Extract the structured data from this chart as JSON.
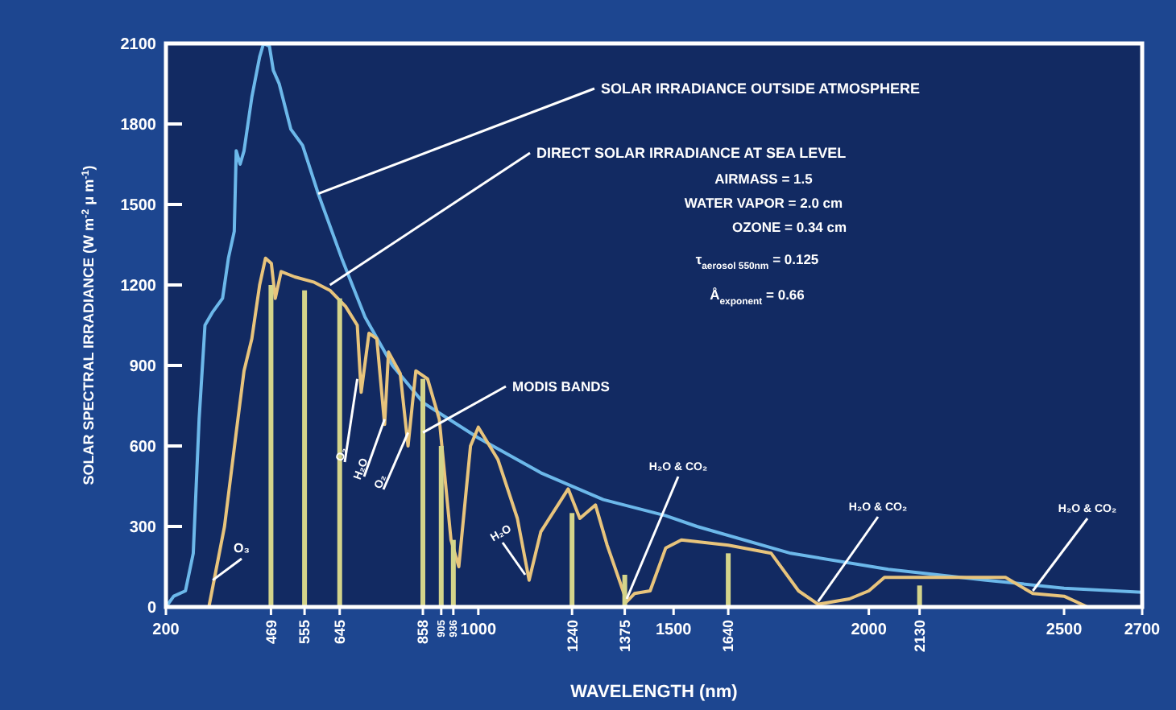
{
  "chart_data": {
    "type": "line",
    "xlabel": "WAVELENGTH (nm)",
    "ylabel": "SOLAR SPECTRAL IRRADIANCE (W m$^{-2}$ μ m$^{-1}$)",
    "xlim": [
      200,
      2700
    ],
    "ylim": [
      0,
      2100
    ],
    "xticks": [
      200,
      1000,
      1500,
      2000,
      2500,
      2700
    ],
    "yticks": [
      0,
      300,
      600,
      900,
      1200,
      1500,
      1800,
      2100
    ],
    "grid": false,
    "marker": "none",
    "line_style": "solid",
    "annotations": [
      {
        "text": "SOLAR IRRADIANCE OUTSIDE ATMOSPHERE",
        "x": 590,
        "y": 1540
      },
      {
        "text": "DIRECT SOLAR IRRADIANCE AT SEA LEVEL",
        "x": 620,
        "y": 1200
      },
      "AIRMASS = 1.5",
      "WATER VAPOR = 2.0 cm",
      "OZONE = 0.34 cm",
      "τ$_{aerosol 550nm}$ = 0.125",
      "Å$_{exponent}$ = 0.66",
      {
        "text": "MODIS BANDS",
        "x": 858,
        "y": 650
      },
      {
        "text": "O₃",
        "x": 320,
        "y": 100
      },
      {
        "text": "O₂",
        "x": 690,
        "y": 850
      },
      {
        "text": "H₂O",
        "x": 760,
        "y": 700
      },
      {
        "text": "O₂",
        "x": 820,
        "y": 650
      },
      {
        "text": "H₂O",
        "x": 1120,
        "y": 120
      },
      {
        "text": "H₂O & CO₂",
        "x": 1380,
        "y": 30
      },
      {
        "text": "H₂O & CO₂",
        "x": 1870,
        "y": 20
      },
      {
        "text": "H₂O & CO₂",
        "x": 2420,
        "y": 60
      },
      {
        "text": "469",
        "x": 469,
        "y": 0
      },
      {
        "text": "555",
        "x": 555,
        "y": 0
      },
      {
        "text": "645",
        "x": 645,
        "y": 0
      },
      {
        "text": "858",
        "x": 858,
        "y": 0
      },
      {
        "text": "905",
        "x": 905,
        "y": 0
      },
      {
        "text": "936",
        "x": 936,
        "y": 0
      },
      {
        "text": "1240",
        "x": 1240,
        "y": 0
      },
      {
        "text": "1375",
        "x": 1375,
        "y": 0
      },
      {
        "text": "1640",
        "x": 1640,
        "y": 0
      },
      {
        "text": "2130",
        "x": 2130,
        "y": 0
      }
    ],
    "series": [
      {
        "color": "#6cb8ea",
        "x": [
          200,
          220,
          250,
          270,
          285,
          300,
          320,
          345,
          360,
          375,
          380,
          390,
          400,
          410,
          420,
          440,
          450,
          465,
          475,
          490,
          520,
          550,
          590,
          650,
          710,
          780,
          860,
          1000,
          1160,
          1320,
          1480,
          1560,
          1800,
          2050,
          2300,
          2500,
          2700
        ],
        "values": [
          0,
          40,
          60,
          200,
          700,
          1050,
          1100,
          1150,
          1300,
          1400,
          1700,
          1650,
          1700,
          1800,
          1900,
          2050,
          2100,
          2090,
          2000,
          1950,
          1780,
          1720,
          1540,
          1300,
          1080,
          900,
          760,
          630,
          500,
          400,
          340,
          300,
          200,
          140,
          100,
          70,
          55
        ]
      },
      {
        "color": "#e8c47c",
        "x": [
          310,
          330,
          350,
          380,
          400,
          420,
          440,
          455,
          470,
          480,
          495,
          530,
          580,
          620,
          660,
          690,
          700,
          720,
          740,
          760,
          770,
          800,
          820,
          840,
          870,
          900,
          930,
          950,
          980,
          1000,
          1050,
          1100,
          1130,
          1160,
          1230,
          1260,
          1300,
          1330,
          1380,
          1400,
          1440,
          1480,
          1520,
          1640,
          1750,
          1820,
          1870,
          1950,
          2000,
          2040,
          2200,
          2350,
          2420,
          2500,
          2560
        ],
        "values": [
          0,
          150,
          300,
          650,
          880,
          1000,
          1200,
          1300,
          1280,
          1150,
          1250,
          1230,
          1210,
          1180,
          1120,
          1050,
          800,
          1020,
          1000,
          680,
          950,
          870,
          600,
          880,
          850,
          700,
          250,
          150,
          600,
          670,
          550,
          330,
          100,
          280,
          440,
          330,
          380,
          230,
          20,
          50,
          60,
          220,
          250,
          230,
          200,
          60,
          10,
          30,
          60,
          110,
          110,
          110,
          50,
          40,
          0
        ]
      },
      {
        "type": "bar",
        "color": "#d4d48a",
        "x": [
          469,
          555,
          645,
          858,
          905,
          936,
          1240,
          1375,
          1640,
          2130
        ],
        "values": [
          1200,
          1180,
          1150,
          850,
          600,
          250,
          350,
          120,
          200,
          80
        ]
      }
    ]
  }
}
